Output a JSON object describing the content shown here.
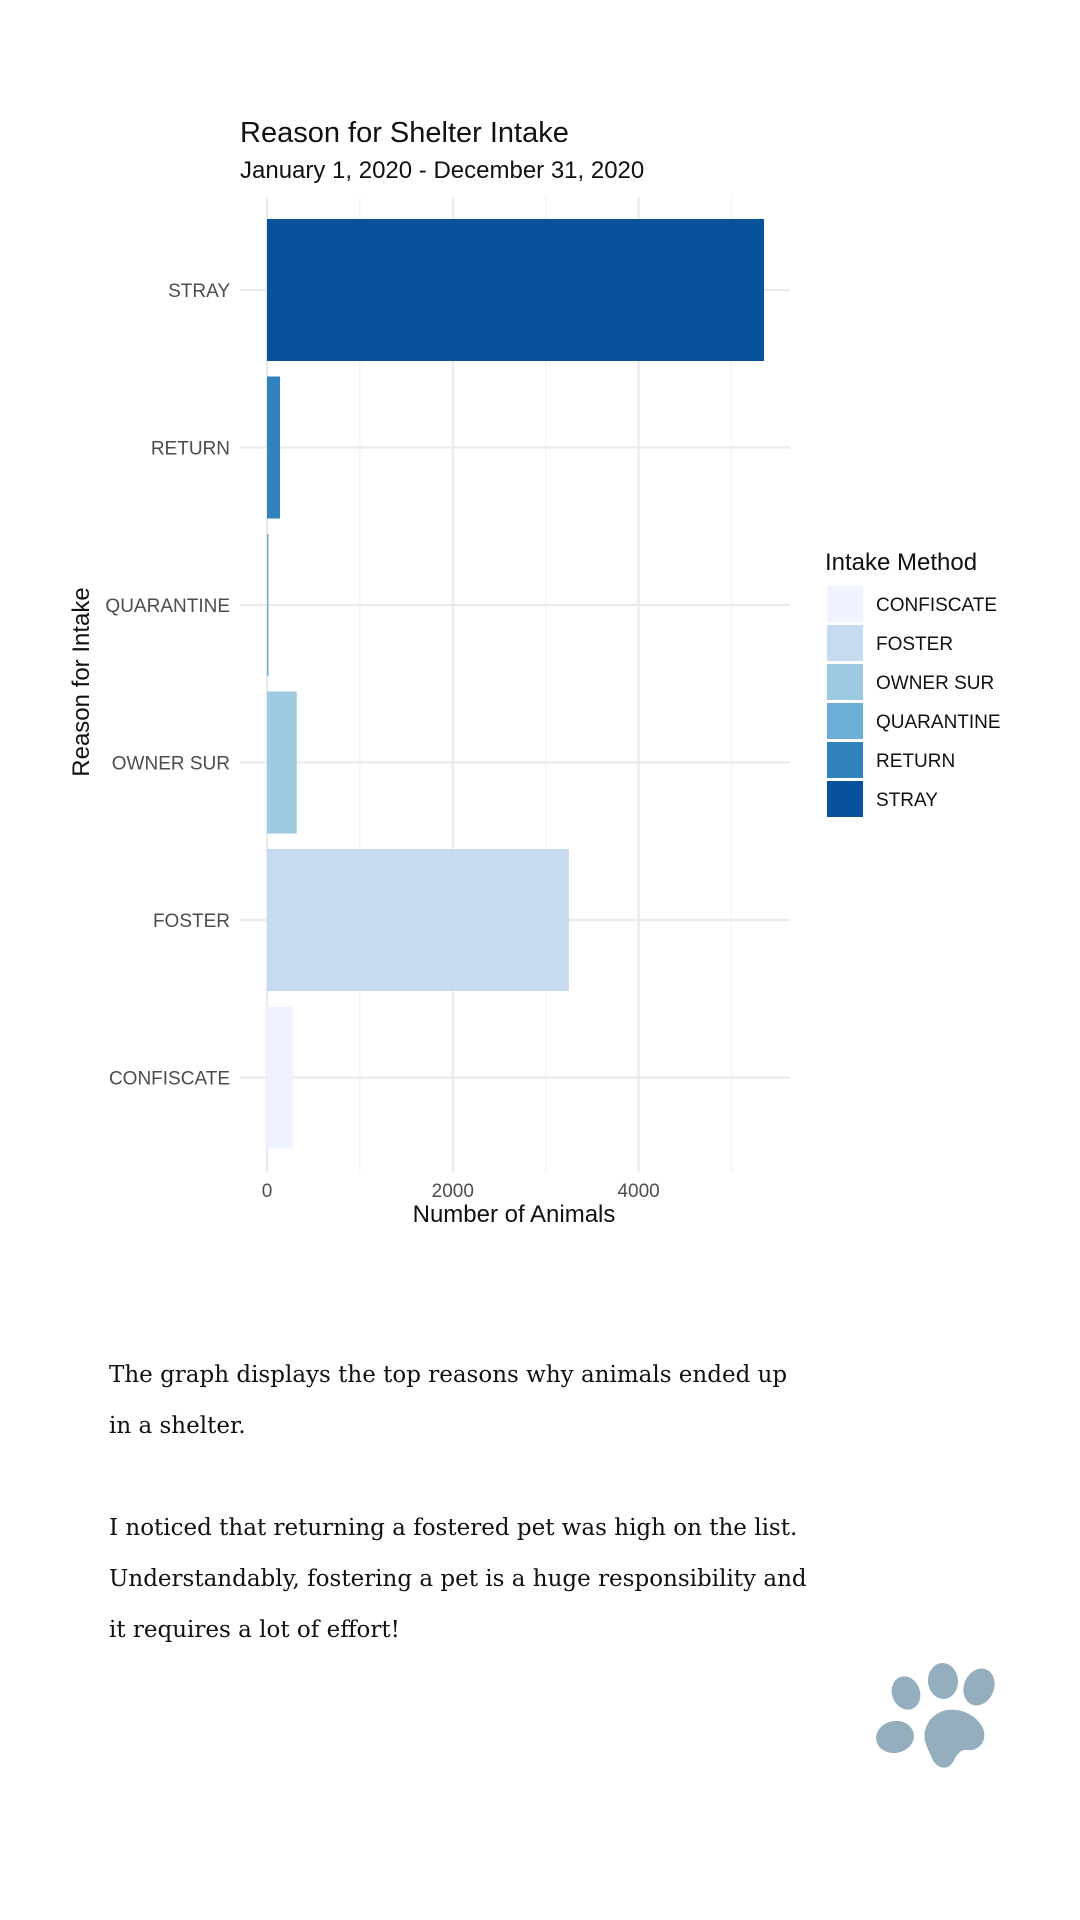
{
  "chart_data": {
    "type": "bar",
    "orientation": "horizontal",
    "title": "Reason for Shelter Intake",
    "subtitle": "January 1, 2020 - December 31, 2020",
    "xlabel": "Number of Animals",
    "ylabel": "Reason for Intake",
    "xlim": [
      0,
      5650
    ],
    "x_ticks": [
      0,
      2000,
      4000
    ],
    "x_tick_labels": [
      "0",
      "2000",
      "4000"
    ],
    "grid": true,
    "categories": [
      "STRAY",
      "RETURN",
      "QUARANTINE",
      "OWNER SUR",
      "FOSTER",
      "CONFISCATE"
    ],
    "values": [
      5350,
      140,
      15,
      320,
      3250,
      280
    ],
    "colors": [
      "#08519c",
      "#3182bd",
      "#6baed6",
      "#9ecae1",
      "#c6dbef",
      "#eff3ff"
    ],
    "legend": {
      "title": "Intake Method",
      "position": "right",
      "entries": [
        "CONFISCATE",
        "FOSTER",
        "OWNER SUR",
        "QUARANTINE",
        "RETURN",
        "STRAY"
      ],
      "colors": [
        "#eff3ff",
        "#c6dbef",
        "#9ecae1",
        "#6baed6",
        "#3182bd",
        "#08519c"
      ]
    }
  },
  "notes": {
    "paragraph_1": "The graph displays the top reasons why animals ended up in a shelter.",
    "paragraph_2": "I noticed that returning a fostered pet was high on the list. Understandably, fostering a pet is a huge responsibility and it requires a lot of effort!"
  },
  "decor": {
    "paw_icon_color": "#94aebd"
  }
}
